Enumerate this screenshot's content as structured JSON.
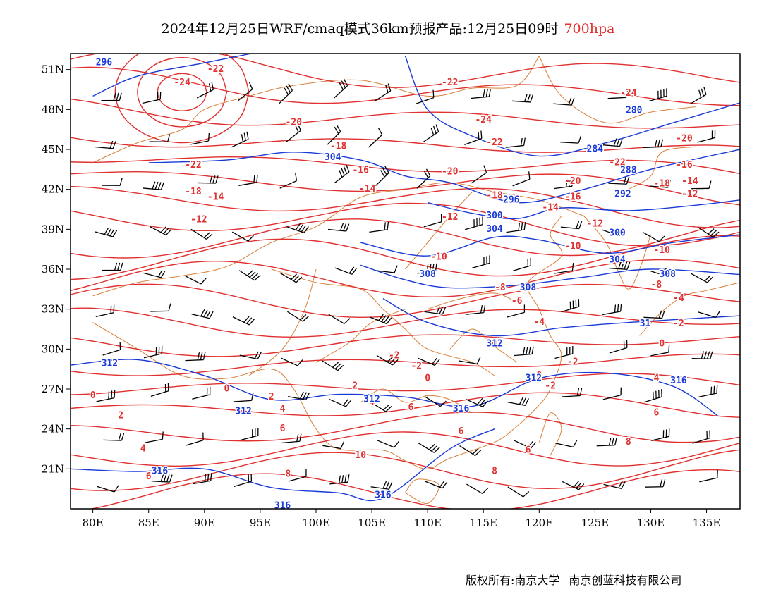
{
  "title": {
    "main": "2024年12月25日WRF/cmaq模式36km预报产品:12月25日09时",
    "level": "700hpa"
  },
  "axes": {
    "lon_ticks": [
      "80E",
      "85E",
      "90E",
      "95E",
      "100E",
      "105E",
      "110E",
      "115E",
      "120E",
      "125E",
      "130E",
      "135E"
    ],
    "lat_ticks": [
      "21N",
      "24N",
      "27N",
      "30N",
      "33N",
      "36N",
      "39N",
      "42N",
      "45N",
      "48N",
      "51N"
    ]
  },
  "layers": {
    "temperature_color": "#e03030",
    "height_color": "#1a3ad8",
    "border_color": "#d9803a",
    "wind_color": "#000000"
  },
  "temp_labels": [
    {
      "text": "-24",
      "lon": 88.0,
      "lat": 50.0
    },
    {
      "text": "-22",
      "lon": 91.0,
      "lat": 51.0
    },
    {
      "text": "-22",
      "lon": 89.0,
      "lat": 43.8
    },
    {
      "text": "-20",
      "lon": 98.0,
      "lat": 47.0
    },
    {
      "text": "-18",
      "lon": 102.0,
      "lat": 45.2
    },
    {
      "text": "-18",
      "lon": 89.0,
      "lat": 41.8
    },
    {
      "text": "-16",
      "lon": 104.0,
      "lat": 43.4
    },
    {
      "text": "-14",
      "lon": 91.0,
      "lat": 41.4
    },
    {
      "text": "-12",
      "lon": 89.5,
      "lat": 39.7
    },
    {
      "text": "-14",
      "lon": 104.6,
      "lat": 42.0
    },
    {
      "text": "-12",
      "lon": 112.0,
      "lat": 39.9
    },
    {
      "text": "-10",
      "lon": 111.0,
      "lat": 36.9
    },
    {
      "text": "-8",
      "lon": 116.5,
      "lat": 34.6
    },
    {
      "text": "-6",
      "lon": 118.0,
      "lat": 33.6
    },
    {
      "text": "-4",
      "lon": 120.0,
      "lat": 32.0
    },
    {
      "text": "-2",
      "lon": 107.0,
      "lat": 29.5
    },
    {
      "text": "-2",
      "lon": 109.0,
      "lat": 28.7
    },
    {
      "text": "0",
      "lon": 110.0,
      "lat": 27.8
    },
    {
      "text": "0",
      "lon": 116.0,
      "lat": 30.4
    },
    {
      "text": "-22",
      "lon": 112.0,
      "lat": 50.0
    },
    {
      "text": "-24",
      "lon": 115.0,
      "lat": 47.2
    },
    {
      "text": "-22",
      "lon": 116.0,
      "lat": 45.5
    },
    {
      "text": "-20",
      "lon": 112.0,
      "lat": 43.3
    },
    {
      "text": "-18",
      "lon": 116.0,
      "lat": 41.5
    },
    {
      "text": "-14",
      "lon": 121.0,
      "lat": 40.6
    },
    {
      "text": "-16",
      "lon": 123.0,
      "lat": 41.4
    },
    {
      "text": "-12",
      "lon": 125.0,
      "lat": 39.4
    },
    {
      "text": "-10",
      "lon": 123.0,
      "lat": 37.7
    },
    {
      "text": "-20",
      "lon": 123.0,
      "lat": 42.6
    },
    {
      "text": "-22",
      "lon": 127.0,
      "lat": 44.0
    },
    {
      "text": "-24",
      "lon": 128.0,
      "lat": 49.2
    },
    {
      "text": "-20",
      "lon": 133.0,
      "lat": 45.8
    },
    {
      "text": "-18",
      "lon": 131.0,
      "lat": 42.4
    },
    {
      "text": "-16",
      "lon": 133.0,
      "lat": 43.8
    },
    {
      "text": "-14",
      "lon": 133.5,
      "lat": 42.6
    },
    {
      "text": "-12",
      "lon": 133.5,
      "lat": 41.6
    },
    {
      "text": "-10",
      "lon": 131.0,
      "lat": 37.4
    },
    {
      "text": "-8",
      "lon": 130.5,
      "lat": 34.8
    },
    {
      "text": "-4",
      "lon": 132.5,
      "lat": 33.8
    },
    {
      "text": "-2",
      "lon": 132.5,
      "lat": 31.9
    },
    {
      "text": "0",
      "lon": 131.0,
      "lat": 30.4
    },
    {
      "text": "-2",
      "lon": 123.0,
      "lat": 29.0
    },
    {
      "text": "-2",
      "lon": 121.0,
      "lat": 27.2
    },
    {
      "text": "0",
      "lon": 120.0,
      "lat": 28.0
    },
    {
      "text": "4",
      "lon": 130.5,
      "lat": 27.8
    },
    {
      "text": "6",
      "lon": 130.5,
      "lat": 25.2
    },
    {
      "text": "8",
      "lon": 128.0,
      "lat": 23.0
    },
    {
      "text": "6",
      "lon": 119.0,
      "lat": 22.4
    },
    {
      "text": "8",
      "lon": 116.0,
      "lat": 20.8
    },
    {
      "text": "6",
      "lon": 113.0,
      "lat": 23.8
    },
    {
      "text": "6",
      "lon": 108.5,
      "lat": 25.6
    },
    {
      "text": "4",
      "lon": 105.0,
      "lat": 26.0
    },
    {
      "text": "2",
      "lon": 103.5,
      "lat": 27.2
    },
    {
      "text": "4",
      "lon": 97.0,
      "lat": 25.5
    },
    {
      "text": "6",
      "lon": 97.0,
      "lat": 24.0
    },
    {
      "text": "10",
      "lon": 104.0,
      "lat": 22.0
    },
    {
      "text": "8",
      "lon": 97.5,
      "lat": 20.6
    },
    {
      "text": "0",
      "lon": 92.0,
      "lat": 27.0
    },
    {
      "text": "0",
      "lon": 80.0,
      "lat": 26.5
    },
    {
      "text": "2",
      "lon": 82.5,
      "lat": 25.0
    },
    {
      "text": "4",
      "lon": 84.5,
      "lat": 22.5
    },
    {
      "text": "6",
      "lon": 85.0,
      "lat": 20.4
    },
    {
      "text": "2",
      "lon": 96.0,
      "lat": 26.4
    }
  ],
  "height_labels": [
    {
      "text": "304",
      "lon": 101.5,
      "lat": 44.4
    },
    {
      "text": "300",
      "lon": 116.0,
      "lat": 40.0
    },
    {
      "text": "304",
      "lon": 116.0,
      "lat": 39.0
    },
    {
      "text": "296",
      "lon": 117.5,
      "lat": 41.2
    },
    {
      "text": "308",
      "lon": 110.0,
      "lat": 35.6
    },
    {
      "text": "308",
      "lon": 119.0,
      "lat": 34.6
    },
    {
      "text": "312",
      "lon": 116.0,
      "lat": 30.4
    },
    {
      "text": "312",
      "lon": 81.5,
      "lat": 28.9
    },
    {
      "text": "312",
      "lon": 93.5,
      "lat": 25.3
    },
    {
      "text": "312",
      "lon": 105.0,
      "lat": 26.2
    },
    {
      "text": "316",
      "lon": 113.0,
      "lat": 25.5
    },
    {
      "text": "316",
      "lon": 86.0,
      "lat": 20.8
    },
    {
      "text": "316",
      "lon": 97.0,
      "lat": 18.2
    },
    {
      "text": "316",
      "lon": 106.0,
      "lat": 19.0
    },
    {
      "text": "316",
      "lon": 132.5,
      "lat": 27.6
    },
    {
      "text": "308",
      "lon": 131.5,
      "lat": 35.6
    },
    {
      "text": "304",
      "lon": 127.0,
      "lat": 36.7
    },
    {
      "text": "300",
      "lon": 127.0,
      "lat": 38.7
    },
    {
      "text": "292",
      "lon": 127.5,
      "lat": 41.6
    },
    {
      "text": "288",
      "lon": 128.0,
      "lat": 43.4
    },
    {
      "text": "284",
      "lon": 125.0,
      "lat": 45.0
    },
    {
      "text": "280",
      "lon": 128.5,
      "lat": 47.9
    },
    {
      "text": "296",
      "lon": 81.0,
      "lat": 51.5
    },
    {
      "text": "312",
      "lon": 119.5,
      "lat": 27.8
    },
    {
      "text": "31",
      "lon": 129.5,
      "lat": 31.9
    }
  ]
}
